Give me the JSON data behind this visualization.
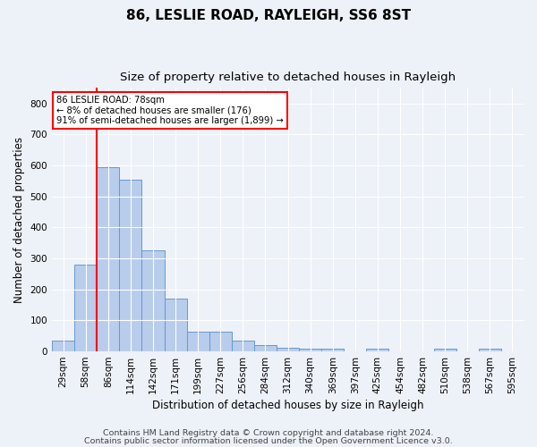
{
  "title1": "86, LESLIE ROAD, RAYLEIGH, SS6 8ST",
  "title2": "Size of property relative to detached houses in Rayleigh",
  "xlabel": "Distribution of detached houses by size in Rayleigh",
  "ylabel": "Number of detached properties",
  "categories": [
    "29sqm",
    "58sqm",
    "86sqm",
    "114sqm",
    "142sqm",
    "171sqm",
    "199sqm",
    "227sqm",
    "256sqm",
    "284sqm",
    "312sqm",
    "340sqm",
    "369sqm",
    "397sqm",
    "425sqm",
    "454sqm",
    "482sqm",
    "510sqm",
    "538sqm",
    "567sqm",
    "595sqm"
  ],
  "values": [
    35,
    280,
    595,
    553,
    325,
    170,
    65,
    65,
    35,
    20,
    12,
    8,
    10,
    0,
    8,
    0,
    0,
    8,
    0,
    8,
    0
  ],
  "bar_color": "#b8ccec",
  "bar_edge_color": "#6699cc",
  "vline_x_index": 2,
  "annotation_lines": [
    "86 LESLIE ROAD: 78sqm",
    "← 8% of detached houses are smaller (176)",
    "91% of semi-detached houses are larger (1,899) →"
  ],
  "ylim": [
    0,
    850
  ],
  "yticks": [
    0,
    100,
    200,
    300,
    400,
    500,
    600,
    700,
    800
  ],
  "footer1": "Contains HM Land Registry data © Crown copyright and database right 2024.",
  "footer2": "Contains public sector information licensed under the Open Government Licence v3.0.",
  "background_color": "#edf1f8",
  "plot_bg_color": "#edf1f8",
  "grid_color": "#ffffff",
  "title1_fontsize": 11,
  "title2_fontsize": 9.5,
  "axis_label_fontsize": 8.5,
  "tick_fontsize": 7.5,
  "footer_fontsize": 6.8
}
